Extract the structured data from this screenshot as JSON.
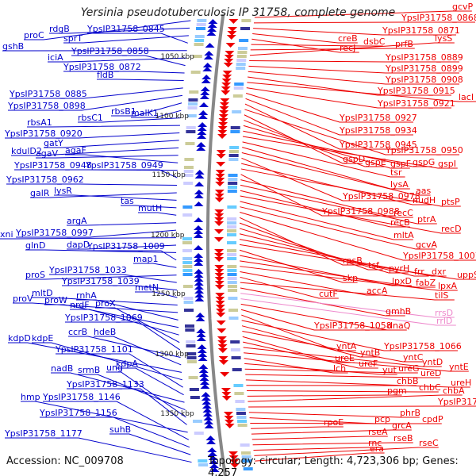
{
  "title": "Yersinia pseudotuberculosis IP 31758, complete genome",
  "accession_line": "Accession: NC_009708",
  "topology_line": "Topology: circular; Length: 4,723,306 bp; Genes: 4,257",
  "colors": {
    "left_strand": "#0000cc",
    "right_strand": "#ee0000",
    "rrna": "#ee88cc",
    "backbone": "#888888",
    "ticks": "#009900"
  },
  "kbp_ticks": [
    "1050 kbp",
    "1100 kbp",
    "1150 kbp",
    "1200 kbp",
    "1250 kbp",
    "1300 kbp",
    "1350 kbp"
  ],
  "left_labels": [
    "proC",
    "rdgB",
    "sprT",
    "YpsIP31758_0845",
    "gshB",
    "iciA",
    "YpsIP31758_0858",
    "YpsIP31758_0872",
    "fldB",
    "YpsIP31758_0885",
    "YpsIP31758_0898",
    "rbsB1",
    "malK1",
    "rbsC1",
    "rbsA1",
    "YpsIP31758_0920",
    "gatY",
    "kdulD2",
    "agaV",
    "agaF",
    "YpsIP31758_0948",
    "YpsIP31758_0949",
    "YpsIP31758_0962",
    "galR",
    "lysR",
    "tas",
    "mutH",
    "argA",
    "YpsIP31758_0997",
    "xni",
    "dapD",
    "glnD",
    "YpsIP31758_1009",
    "map1",
    "proS",
    "YpsIP31758_1033",
    "YpsIP31758_1039",
    "metN",
    "mltD",
    "proV",
    "rnhA",
    "proW",
    "nrdF",
    "proX",
    "YpsIP31758_1069",
    "ccrB",
    "hdeB",
    "kdpD",
    "kdpE",
    "YpsIP31758_1101",
    "kdpA",
    "nadB",
    "srmB",
    "ung",
    "YpsIP31758_1133",
    "hmp",
    "YpsIP31758_1146",
    "YpsIP31758_1156",
    "suhB",
    "YpsIP31758_1177"
  ],
  "right_labels": [
    "gcvP",
    "YpsIP31758_0868",
    "YpsIP31758_0871",
    "creB",
    "recJ",
    "dsbC",
    "prfB",
    "lysS",
    "YpsIP31758_0889",
    "YpsIP31758_0899",
    "YpsIP31758_0908",
    "YpsIP31758_0915",
    "lacI",
    "YpsIP31758_0921",
    "YpsIP31758_0927",
    "YpsIP31758_0934",
    "YpsIP31758_0945",
    "YpsIP31758_0950",
    "gspD",
    "gspE",
    "gspF",
    "gspG",
    "gspI",
    "tsr",
    "lysA",
    "aas",
    "YpsIP31758_0978",
    "nudH",
    "ptsP",
    "YpsIP31758_0988",
    "recC",
    "ptrA",
    "recB",
    "recD",
    "mltA",
    "gcvA",
    "YpsIP31758_1007",
    "rpsB",
    "tsf",
    "pyrH",
    "frr",
    "dxr",
    "uppS",
    "skp",
    "lpxD",
    "fabZ",
    "lpxA",
    "accA",
    "cutF",
    "tilS",
    "gmhB",
    "rrsD",
    "rrlD",
    "dnaQ",
    "YpsIP31758_1058",
    "yntA",
    "YpsIP31758_1066",
    "yntB",
    "yntC",
    "ureE",
    "ureF",
    "yntD",
    "yntE",
    "lch",
    "yut",
    "ureG",
    "ureD",
    "ureH",
    "chbB",
    "chbC",
    "pgm",
    "chbA",
    "YpsIP31758_1105",
    "phrB",
    "pcp",
    "cpdP",
    "rpoE",
    "grcA",
    "rseA",
    "rseB",
    "rnc",
    "rseC",
    "era"
  ]
}
